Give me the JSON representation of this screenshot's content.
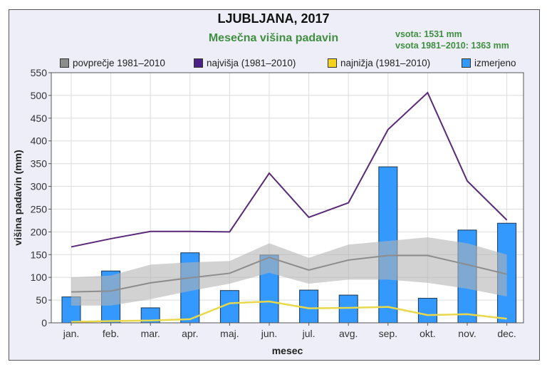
{
  "chart_data": {
    "type": "bar",
    "title": "LJUBLJANA, 2017",
    "subtitle": "Mesečna višina padavin",
    "totals": [
      "vsota: 1531 mm",
      "vsota 1981–2010: 1363 mm"
    ],
    "xlabel": "mesec",
    "ylabel": "višina padavin (mm)",
    "ylim": [
      0,
      550
    ],
    "yticks": [
      0,
      50,
      100,
      150,
      200,
      250,
      300,
      350,
      400,
      450,
      500,
      550
    ],
    "grid": true,
    "legend_position": "top",
    "categories": [
      "jan.",
      "feb.",
      "mar.",
      "apr.",
      "maj.",
      "jun.",
      "jul.",
      "avg.",
      "sep.",
      "okt.",
      "nov.",
      "dec."
    ],
    "series": [
      {
        "name": "povprečje 1981–2010",
        "type": "line",
        "color": "#8c8c8c",
        "values": [
          68,
          70,
          88,
          99,
          109,
          144,
          116,
          138,
          148,
          148,
          128,
          107
        ],
        "band_upper": [
          100,
          104,
          128,
          133,
          136,
          175,
          143,
          172,
          180,
          188,
          175,
          150
        ],
        "band_lower": [
          38,
          38,
          52,
          70,
          86,
          110,
          86,
          95,
          95,
          88,
          75,
          58
        ]
      },
      {
        "name": "najvišja (1981–2010)",
        "type": "line",
        "color": "#5a2a7a",
        "values": [
          167,
          185,
          201,
          201,
          200,
          329,
          232,
          264,
          425,
          506,
          312,
          226
        ]
      },
      {
        "name": "najnižja (1981–2010)",
        "type": "line",
        "color": "#e8d84a",
        "values": [
          2,
          4,
          5,
          8,
          43,
          47,
          32,
          33,
          35,
          17,
          19,
          9
        ]
      },
      {
        "name": "izmerjeno",
        "type": "bar",
        "color": "#3399ff",
        "values": [
          57,
          114,
          33,
          154,
          71,
          149,
          72,
          61,
          343,
          54,
          204,
          219
        ]
      }
    ]
  }
}
